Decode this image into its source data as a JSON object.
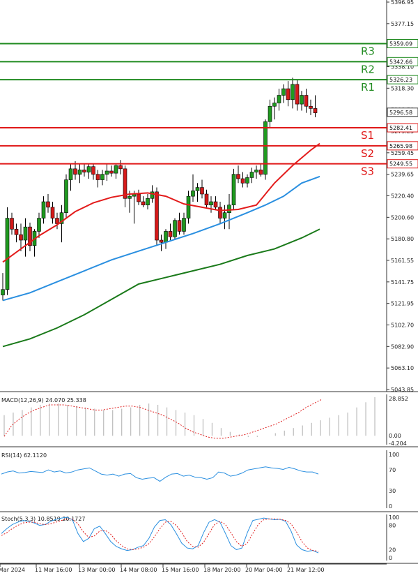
{
  "chart_data": {
    "type": "candlestick",
    "instrument_panel": {
      "y_ticks": [
        "5396.95",
        "5377.15",
        "5357.35",
        "5338.10",
        "5318.30",
        "5298.50",
        "5279.25",
        "5259.45",
        "5239.65",
        "5220.40",
        "5200.60",
        "5180.80",
        "5161.55",
        "5141.75",
        "5121.95",
        "5102.70",
        "5082.90",
        "5063.10",
        "5043.85"
      ],
      "ylim": [
        5043.85,
        5396.95
      ],
      "current_price": "5296.58",
      "levels": [
        {
          "name": "R3",
          "value": 5359.09,
          "label": "5359.09",
          "color": "#1f8a1f"
        },
        {
          "name": "R2",
          "value": 5342.66,
          "label": "5342.66",
          "color": "#1f8a1f"
        },
        {
          "name": "R1",
          "value": 5326.23,
          "label": "5326.23",
          "color": "#1f8a1f"
        },
        {
          "name": "S1",
          "value": 5282.41,
          "label": "5282.41",
          "color": "#e01818"
        },
        {
          "name": "S2",
          "value": 5265.98,
          "label": "5265.98",
          "color": "#e01818"
        },
        {
          "name": "S3",
          "value": 5249.55,
          "label": "5249.55",
          "color": "#e01818"
        }
      ],
      "candles": [
        [
          5130,
          5150,
          5125,
          5135
        ],
        [
          5135,
          5210,
          5130,
          5200
        ],
        [
          5200,
          5205,
          5185,
          5190
        ],
        [
          5190,
          5195,
          5178,
          5185
        ],
        [
          5185,
          5195,
          5170,
          5180
        ],
        [
          5180,
          5200,
          5165,
          5192
        ],
        [
          5192,
          5196,
          5170,
          5175
        ],
        [
          5175,
          5190,
          5165,
          5188
        ],
        [
          5188,
          5205,
          5182,
          5200
        ],
        [
          5200,
          5220,
          5195,
          5215
        ],
        [
          5215,
          5222,
          5205,
          5210
        ],
        [
          5210,
          5215,
          5195,
          5200
        ],
        [
          5200,
          5205,
          5190,
          5195
        ],
        [
          5195,
          5212,
          5178,
          5205
        ],
        [
          5205,
          5240,
          5200,
          5235
        ],
        [
          5235,
          5250,
          5225,
          5245
        ],
        [
          5245,
          5252,
          5235,
          5240
        ],
        [
          5240,
          5250,
          5232,
          5244
        ],
        [
          5244,
          5250,
          5238,
          5242
        ],
        [
          5242,
          5250,
          5236,
          5247
        ],
        [
          5247,
          5250,
          5235,
          5240
        ],
        [
          5240,
          5244,
          5228,
          5235
        ],
        [
          5235,
          5244,
          5230,
          5240
        ],
        [
          5240,
          5250,
          5234,
          5243
        ],
        [
          5243,
          5248,
          5238,
          5241
        ],
        [
          5241,
          5250,
          5236,
          5248
        ],
        [
          5248,
          5253,
          5240,
          5245
        ],
        [
          5245,
          5248,
          5210,
          5218
        ],
        [
          5218,
          5225,
          5205,
          5220
        ],
        [
          5220,
          5225,
          5195,
          5222
        ],
        [
          5222,
          5226,
          5212,
          5215
        ],
        [
          5215,
          5220,
          5210,
          5212
        ],
        [
          5212,
          5222,
          5208,
          5218
        ],
        [
          5218,
          5230,
          5214,
          5224
        ],
        [
          5224,
          5228,
          5175,
          5180
        ],
        [
          5180,
          5185,
          5170,
          5178
        ],
        [
          5178,
          5190,
          5172,
          5188
        ],
        [
          5188,
          5195,
          5180,
          5183
        ],
        [
          5183,
          5200,
          5180,
          5198
        ],
        [
          5198,
          5205,
          5185,
          5188
        ],
        [
          5188,
          5205,
          5185,
          5200
        ],
        [
          5200,
          5225,
          5195,
          5220
        ],
        [
          5220,
          5240,
          5215,
          5225
        ],
        [
          5225,
          5232,
          5215,
          5228
        ],
        [
          5228,
          5235,
          5218,
          5222
        ],
        [
          5222,
          5226,
          5210,
          5212
        ],
        [
          5212,
          5220,
          5205,
          5215
        ],
        [
          5215,
          5220,
          5208,
          5210
        ],
        [
          5210,
          5215,
          5195,
          5200
        ],
        [
          5200,
          5212,
          5190,
          5205
        ],
        [
          5205,
          5222,
          5190,
          5212
        ],
        [
          5212,
          5245,
          5208,
          5240
        ],
        [
          5240,
          5248,
          5232,
          5236
        ],
        [
          5236,
          5242,
          5228,
          5232
        ],
        [
          5232,
          5240,
          5228,
          5237
        ],
        [
          5237,
          5246,
          5232,
          5242
        ],
        [
          5242,
          5248,
          5236,
          5244
        ],
        [
          5244,
          5250,
          5238,
          5240
        ],
        [
          5240,
          5290,
          5235,
          5288
        ],
        [
          5288,
          5308,
          5282,
          5302
        ],
        [
          5302,
          5310,
          5290,
          5305
        ],
        [
          5305,
          5318,
          5298,
          5312
        ],
        [
          5312,
          5322,
          5305,
          5318
        ],
        [
          5318,
          5325,
          5302,
          5308
        ],
        [
          5308,
          5328,
          5300,
          5322
        ],
        [
          5322,
          5326,
          5298,
          5304
        ],
        [
          5304,
          5316,
          5298,
          5312
        ],
        [
          5312,
          5318,
          5296,
          5302
        ],
        [
          5302,
          5308,
          5294,
          5300
        ],
        [
          5300,
          5312,
          5292,
          5296
        ]
      ],
      "moving_averages": [
        {
          "color": "#e31b1b",
          "points": [
            [
              0,
              5160
            ],
            [
              4,
              5172
            ],
            [
              8,
              5184
            ],
            [
              12,
              5194
            ],
            [
              16,
              5206
            ],
            [
              20,
              5214
            ],
            [
              24,
              5219
            ],
            [
              28,
              5222
            ],
            [
              32,
              5223
            ],
            [
              36,
              5220
            ],
            [
              40,
              5213
            ],
            [
              44,
              5210
            ],
            [
              48,
              5207
            ],
            [
              52,
              5208
            ],
            [
              56,
              5212
            ],
            [
              60,
              5232
            ],
            [
              64,
              5248
            ],
            [
              68,
              5262
            ],
            [
              70,
              5268
            ]
          ]
        },
        {
          "color": "#2a8fe0",
          "points": [
            [
              0,
              5125
            ],
            [
              6,
              5132
            ],
            [
              12,
              5142
            ],
            [
              18,
              5152
            ],
            [
              24,
              5162
            ],
            [
              30,
              5170
            ],
            [
              36,
              5178
            ],
            [
              42,
              5186
            ],
            [
              48,
              5195
            ],
            [
              54,
              5205
            ],
            [
              58,
              5212
            ],
            [
              62,
              5220
            ],
            [
              66,
              5232
            ],
            [
              70,
              5238
            ]
          ]
        },
        {
          "color": "#1a7a1a",
          "points": [
            [
              0,
              5083
            ],
            [
              6,
              5090
            ],
            [
              12,
              5100
            ],
            [
              18,
              5112
            ],
            [
              24,
              5126
            ],
            [
              30,
              5140
            ],
            [
              36,
              5146
            ],
            [
              42,
              5152
            ],
            [
              48,
              5158
            ],
            [
              54,
              5166
            ],
            [
              60,
              5172
            ],
            [
              66,
              5182
            ],
            [
              70,
              5190
            ]
          ]
        }
      ]
    },
    "macd": {
      "label": "MACD(12,26,9) 24.070 25.338",
      "y_ticks": [
        "28.852",
        "0.00",
        "-4.204"
      ],
      "histogram": [
        16,
        18,
        20,
        22,
        24,
        25,
        25,
        24,
        23,
        22,
        21,
        20,
        20,
        21,
        22,
        24,
        25,
        24,
        22,
        20,
        18,
        16,
        13,
        10,
        6,
        3,
        1,
        -1,
        -1,
        0,
        2,
        4,
        6,
        8,
        10,
        12,
        14,
        16,
        18,
        22,
        26,
        30
      ],
      "signal": [
        -0.5,
        8,
        13,
        17,
        20,
        22,
        24,
        24,
        24,
        23,
        22,
        21,
        20,
        20,
        21,
        22,
        23,
        23,
        22,
        20,
        18,
        16,
        13,
        10,
        6,
        3,
        1,
        -1,
        -2,
        -2,
        -1,
        0,
        1,
        3,
        5,
        7,
        9,
        12,
        15,
        18,
        22,
        25,
        28
      ]
    },
    "rsi": {
      "label": "RSI(14) 62.1120",
      "y_ticks": [
        "100",
        "70",
        "30",
        "0"
      ],
      "values": [
        62,
        66,
        68,
        64,
        65,
        67,
        66,
        65,
        70,
        66,
        68,
        64,
        66,
        70,
        72,
        74,
        68,
        62,
        60,
        62,
        58,
        62,
        63,
        55,
        52,
        54,
        55,
        48,
        56,
        62,
        63,
        58,
        60,
        56,
        55,
        52,
        55,
        66,
        64,
        58,
        60,
        64,
        70,
        72,
        74,
        76,
        74,
        73,
        71,
        75,
        72,
        68,
        66,
        66,
        62
      ]
    },
    "stoch": {
      "label": "Stoch(5,3,3) 10.8519 20.1727",
      "y_ticks": [
        "100",
        "80",
        "20",
        "0"
      ],
      "k": [
        60,
        72,
        82,
        88,
        92,
        90,
        86,
        80,
        82,
        90,
        95,
        98,
        100,
        94,
        60,
        40,
        48,
        72,
        78,
        60,
        40,
        28,
        22,
        18,
        20,
        26,
        30,
        48,
        76,
        92,
        94,
        82,
        60,
        36,
        24,
        22,
        30,
        62,
        88,
        94,
        88,
        60,
        30,
        20,
        24,
        62,
        92,
        95,
        98,
        96,
        94,
        95,
        90,
        66,
        32,
        20,
        16,
        18,
        12
      ],
      "d": [
        55,
        62,
        72,
        80,
        86,
        88,
        88,
        84,
        82,
        84,
        88,
        92,
        96,
        96,
        84,
        64,
        50,
        54,
        66,
        68,
        58,
        42,
        30,
        22,
        20,
        22,
        26,
        35,
        52,
        72,
        88,
        90,
        80,
        62,
        40,
        28,
        26,
        38,
        60,
        82,
        90,
        82,
        62,
        40,
        28,
        36,
        60,
        82,
        94,
        96,
        96,
        95,
        92,
        84,
        64,
        40,
        24,
        18,
        16
      ]
    },
    "x_labels": [
      "Mar 2024",
      "11 Mar 16:00",
      "13 Mar 00:00",
      "14 Mar 08:00",
      "15 Mar 16:00",
      "18 Mar 20:00",
      "20 Mar 04:00",
      "21 Mar 12:00"
    ]
  }
}
